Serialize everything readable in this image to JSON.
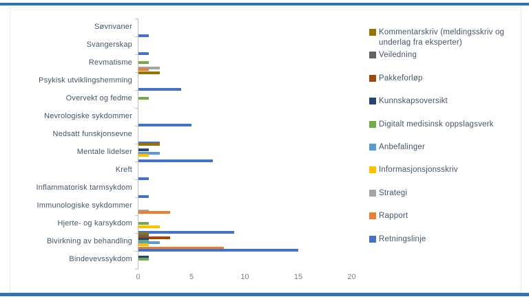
{
  "rules": {
    "top_color": "#2E75B6",
    "bottom_color": "#2E75B6"
  },
  "chart_data": {
    "type": "bar",
    "orientation": "horizontal",
    "title": "",
    "xlabel": "",
    "ylabel": "",
    "x_axis": {
      "tick_labels": [
        "0",
        "5",
        "10",
        "15",
        "20"
      ],
      "tick_values": [
        0,
        5,
        10,
        15,
        20
      ],
      "range": [
        0,
        21
      ],
      "grid": false
    },
    "legend_position": "right",
    "series": [
      {
        "name": "Kommentarskriv (meldingsskriv og underlag fra eksperter)",
        "short": "Kommentarskriv",
        "color": "#997300"
      },
      {
        "name": "Veiledning",
        "short": "Veiledning",
        "color": "#636363"
      },
      {
        "name": "Pakkeforløp",
        "short": "Pakkeforløp",
        "color": "#9E480E"
      },
      {
        "name": "Kunnskapsoversikt",
        "short": "Kunnskapsoversikt",
        "color": "#264478"
      },
      {
        "name": "Digitalt medisinsk oppslagsverk",
        "short": "Digitalt",
        "color": "#70AD47"
      },
      {
        "name": "Anbefalinger",
        "short": "Anbefalinger",
        "color": "#5B9BD5"
      },
      {
        "name": "Informasjonsjonsskriv",
        "short": "Informasjonsskriv",
        "color": "#FFC000"
      },
      {
        "name": "Strategi",
        "short": "Strategi",
        "color": "#A5A5A5"
      },
      {
        "name": "Rapport",
        "short": "Rapport",
        "color": "#ED7D31"
      },
      {
        "name": "Retningslinje",
        "short": "Retningslinje",
        "color": "#4472C4"
      }
    ],
    "rows": [
      {
        "category": "Søvnvaner",
        "values": [
          {
            "series": "Retningslinje",
            "value": 1
          }
        ]
      },
      {
        "category": "Svangerskap",
        "values": [
          {
            "series": "Retningslinje",
            "value": 1
          }
        ]
      },
      {
        "category": "Revmatisme",
        "values": [
          {
            "series": "Digitalt",
            "value": 1
          },
          {
            "series": "Strategi",
            "value": 2
          },
          {
            "series": "Rapport",
            "value": 1
          }
        ]
      },
      {
        "category": "Psykisk utviklingshemming",
        "values": [
          {
            "series": "Kommentarskriv",
            "value": 2
          },
          {
            "series": "Retningslinje",
            "value": 4
          }
        ]
      },
      {
        "category": "Overvekt og fedme",
        "values": [
          {
            "series": "Digitalt",
            "value": 1
          }
        ]
      },
      {
        "category": "Nevrologiske sykdommer",
        "values": [
          {
            "series": "Retningslinje",
            "value": 5
          }
        ]
      },
      {
        "category": "Nedsatt funskjonsevne",
        "values": [
          {
            "series": "Retningslinje",
            "value": 2
          }
        ]
      },
      {
        "category": "Mentale lidelser",
        "values": [
          {
            "series": "Kommentarskriv",
            "value": 2
          },
          {
            "series": "Kunnskapsoversikt",
            "value": 1
          },
          {
            "series": "Anbefalinger",
            "value": 2
          },
          {
            "series": "Informasjonsskriv",
            "value": 1
          },
          {
            "series": "Retningslinje",
            "value": 7
          }
        ]
      },
      {
        "category": "Kreft",
        "values": [
          {
            "series": "Retningslinje",
            "value": 1
          }
        ]
      },
      {
        "category": "Inflammatorisk tarmsykdom",
        "values": [
          {
            "series": "Retningslinje",
            "value": 1
          }
        ]
      },
      {
        "category": "Immunologiske sykdommer",
        "values": [
          {
            "series": "Strategi",
            "value": 1
          },
          {
            "series": "Rapport",
            "value": 3
          }
        ]
      },
      {
        "category": "Hjerte- og karsykdom",
        "values": [
          {
            "series": "Digitalt",
            "value": 1
          },
          {
            "series": "Informasjonsskriv",
            "value": 2
          },
          {
            "series": "Retningslinje",
            "value": 9
          }
        ]
      },
      {
        "category": "Bivirkning av behandling",
        "values": [
          {
            "series": "Kommentarskriv",
            "value": 1
          },
          {
            "series": "Veiledning",
            "value": 1
          },
          {
            "series": "Pakkeforløp",
            "value": 3
          },
          {
            "series": "Kunnskapsoversikt",
            "value": 1
          },
          {
            "series": "Digitalt",
            "value": 1
          },
          {
            "series": "Anbefalinger",
            "value": 2
          },
          {
            "series": "Informasjonsskriv",
            "value": 1
          },
          {
            "series": "Rapport",
            "value": 8
          },
          {
            "series": "Retningslinje",
            "value": 15
          }
        ]
      },
      {
        "category": "Bindevevssykdom",
        "values": [
          {
            "series": "Kunnskapsoversikt",
            "value": 1
          },
          {
            "series": "Digitalt",
            "value": 1
          }
        ]
      }
    ]
  }
}
